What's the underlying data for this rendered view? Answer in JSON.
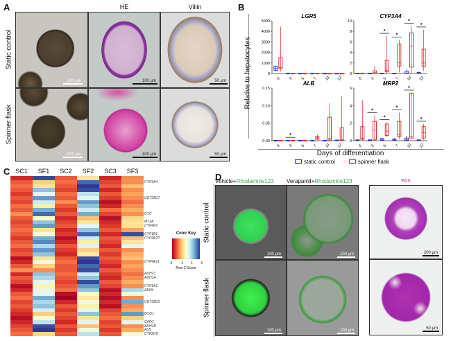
{
  "panels": {
    "a": "A",
    "b": "B",
    "c": "C",
    "d": "D"
  },
  "panel_a": {
    "columns": [
      "HE",
      "Villin"
    ],
    "rows": [
      "Static control",
      "Spinner flask"
    ],
    "scale_bars": {
      "r1": [
        "200 µm",
        "100 µm",
        "50 µm"
      ],
      "r2": [
        "200 µm",
        "100 µm",
        "50 µm"
      ]
    }
  },
  "panel_b": {
    "ylabel": "Relative to hepatocytes",
    "xlabel": "Days of differentiation",
    "legend": [
      {
        "label": "static control",
        "color": "#2a2ad8"
      },
      {
        "label": "spinner flask",
        "color": "#e02020"
      }
    ],
    "sig_marker": "*"
  },
  "chart_data": [
    {
      "type": "box",
      "title": "LGR5",
      "categories": [
        "0",
        "3",
        "5",
        "7",
        "10",
        "12"
      ],
      "ylim": [
        0,
        5000
      ],
      "yticks": [
        0,
        1000,
        2000,
        3000,
        4000,
        5000
      ],
      "series": [
        {
          "name": "static control",
          "boxes": [
            [
              200,
              300,
              500,
              700,
              750
            ],
            [
              0,
              5,
              10,
              20,
              30
            ],
            [
              0,
              5,
              10,
              20,
              30
            ],
            [
              0,
              5,
              10,
              20,
              30
            ],
            [
              0,
              5,
              10,
              20,
              30
            ],
            [
              0,
              5,
              10,
              20,
              30
            ]
          ]
        },
        {
          "name": "spinner flask",
          "boxes": [
            [
              200,
              450,
              550,
              1500,
              4450
            ],
            [
              0,
              5,
              10,
              20,
              40
            ],
            [
              0,
              5,
              10,
              20,
              40
            ],
            [
              0,
              5,
              10,
              20,
              40
            ],
            [
              0,
              5,
              10,
              20,
              40
            ],
            [
              0,
              5,
              10,
              20,
              40
            ]
          ]
        }
      ],
      "significant": []
    },
    {
      "type": "box",
      "title": "CYP3A4",
      "categories": [
        "0",
        "3",
        "5",
        "7",
        "10",
        "12"
      ],
      "ylim": [
        0,
        10
      ],
      "yticks": [
        0,
        2,
        4,
        6,
        8,
        10
      ],
      "series": [
        {
          "name": "static control",
          "boxes": [
            [
              0,
              0,
              0.02,
              0.05,
              0.08
            ],
            [
              0,
              0,
              0.02,
              0.05,
              0.08
            ],
            [
              0,
              0,
              0.02,
              0.05,
              0.1
            ],
            [
              0,
              0,
              0.02,
              0.05,
              0.1
            ],
            [
              0,
              0.02,
              0.1,
              0.4,
              0.8
            ],
            [
              0,
              0.02,
              0.1,
              0.2,
              0.4
            ]
          ]
        },
        {
          "name": "spinner flask",
          "boxes": [
            [
              0,
              0,
              0.02,
              0.05,
              0.08
            ],
            [
              0,
              0.05,
              0.15,
              0.5,
              1.4
            ],
            [
              0,
              0.3,
              0.6,
              2.5,
              7.1
            ],
            [
              0.2,
              1.4,
              2,
              5.6,
              6.4
            ],
            [
              0,
              1.2,
              5.2,
              7.7,
              9
            ],
            [
              0.5,
              1.3,
              2,
              4.6,
              8.3
            ]
          ]
        }
      ],
      "significant": [
        "5",
        "7",
        "10",
        "12"
      ]
    },
    {
      "type": "box",
      "title": "ALB",
      "categories": [
        "0",
        "3",
        "5",
        "7",
        "10",
        "12"
      ],
      "ylim": [
        0,
        0.15
      ],
      "yticks": [
        0,
        0.05,
        0.1,
        0.15
      ],
      "series": [
        {
          "name": "static control",
          "boxes": [
            [
              0,
              0,
              0.0005,
              0.001,
              0.0015
            ],
            [
              0,
              0,
              0.0005,
              0.001,
              0.0015
            ],
            [
              0,
              0,
              0.0005,
              0.001,
              0.0015
            ],
            [
              0,
              0,
              0.0005,
              0.001,
              0.0015
            ],
            [
              0,
              0,
              0.0005,
              0.001,
              0.0015
            ],
            [
              0,
              0,
              0.001,
              0.002,
              0.003
            ]
          ]
        },
        {
          "name": "spinner flask",
          "boxes": [
            [
              0,
              0,
              0.0005,
              0.001,
              0.0015
            ],
            [
              0,
              0,
              0.0005,
              0.001,
              0.0015
            ],
            [
              0,
              0,
              0.0005,
              0.001,
              0.002
            ],
            [
              0.002,
              0.004,
              0.008,
              0.012,
              0.018
            ],
            [
              0,
              0.002,
              0.007,
              0.067,
              0.107
            ],
            [
              0,
              0.001,
              0.003,
              0.037,
              0.127
            ]
          ]
        }
      ],
      "significant": [
        "3"
      ]
    },
    {
      "type": "box",
      "title": "MRP2",
      "categories": [
        "0",
        "3",
        "5",
        "7",
        "10",
        "12"
      ],
      "ylim": [
        0,
        6
      ],
      "yticks": [
        0,
        2,
        4,
        6
      ],
      "series": [
        {
          "name": "static control",
          "boxes": [
            [
              0,
              0.02,
              0.05,
              0.1,
              0.15
            ],
            [
              0,
              0.02,
              0.05,
              0.1,
              0.15
            ],
            [
              0,
              0.05,
              0.15,
              0.25,
              0.3
            ],
            [
              0,
              0.05,
              0.1,
              0.2,
              0.3
            ],
            [
              0,
              0.05,
              0.15,
              0.3,
              0.55
            ],
            [
              0,
              0.02,
              0.05,
              0.1,
              0.15
            ]
          ]
        },
        {
          "name": "spinner flask",
          "boxes": [
            [
              0,
              0.15,
              0.3,
              1.6,
              4.6
            ],
            [
              0,
              0.1,
              1.2,
              2.2,
              2.9
            ],
            [
              0.4,
              0.6,
              1.1,
              1.9,
              2.1
            ],
            [
              0.2,
              0.5,
              0.7,
              2.2,
              3.2
            ],
            [
              0.2,
              0.3,
              0.5,
              5.4,
              5.5
            ],
            [
              0.1,
              0.3,
              0.9,
              1.6,
              1.9
            ]
          ]
        }
      ],
      "significant": [
        "3",
        "5",
        "7",
        "10",
        "12"
      ]
    }
  ],
  "panel_c": {
    "columns": [
      "SC1",
      "SF1",
      "SC2",
      "SF2",
      "SC3",
      "SF3"
    ],
    "color_key": {
      "title": "Color Key",
      "ticks": [
        "-3",
        "-1",
        "1",
        "3"
      ],
      "label": "Row Z-Score"
    },
    "genes": [
      {
        "name": "CYP3A4",
        "row": 1
      },
      {
        "name": "UGT2B17",
        "row": 5
      },
      {
        "name": "OTC",
        "row": 9
      },
      {
        "name": "MT2A",
        "row": 11
      },
      {
        "name": "CYP4F2",
        "row": 12
      },
      {
        "name": "CYP1B1",
        "row": 14
      },
      {
        "name": "CYP2B7P",
        "row": 15
      },
      {
        "name": "CYP4A11",
        "row": 21
      },
      {
        "name": "ADH1C",
        "row": 24
      },
      {
        "name": "ADH1A",
        "row": 25
      },
      {
        "name": "CYP1A1",
        "row": 27
      },
      {
        "name": "ADH4",
        "row": 28
      },
      {
        "name": "UGT2B10",
        "row": 31
      },
      {
        "name": "BCO1",
        "row": 34
      },
      {
        "name": "G6PC",
        "row": 36
      },
      {
        "name": "ADH1B",
        "row": 37
      },
      {
        "name": "ALB",
        "row": 38
      },
      {
        "name": "CYP2C8",
        "row": 39
      }
    ],
    "zscores": [
      [
        -2.5,
        2.8,
        -2,
        -0.5,
        -2.5,
        -1.5
      ],
      [
        -2,
        -0.8,
        -1.8,
        2.5,
        -2.2,
        -1.5
      ],
      [
        -1.8,
        -0.5,
        -2,
        3,
        -2,
        -1
      ],
      [
        -2,
        1.5,
        -2.2,
        2.8,
        -2.5,
        -1.5
      ],
      [
        -2.3,
        0.5,
        -1.8,
        1,
        -2,
        -1.3
      ],
      [
        -2,
        2,
        -2,
        0.5,
        -2.3,
        -1.5
      ],
      [
        -2.2,
        0.8,
        -1.5,
        2,
        -2.8,
        -1.8
      ],
      [
        -1.8,
        -0.3,
        -2,
        1.5,
        -2.5,
        -1.5
      ],
      [
        -2,
        1.8,
        -2.3,
        0.8,
        -1.8,
        -1.2
      ],
      [
        -1.5,
        2.5,
        -2,
        1.8,
        -2.2,
        -1.5
      ],
      [
        -2,
        0,
        -2.5,
        -1,
        -2.8,
        -0.7
      ],
      [
        -2.2,
        1.5,
        -2.2,
        -0.5,
        -2.5,
        -0.5
      ],
      [
        -2,
        2,
        -2,
        0.5,
        -2.3,
        -0.6
      ],
      [
        -1.8,
        -0.5,
        -2.5,
        1.5,
        -2,
        -1.3
      ],
      [
        -2,
        0.2,
        -2.3,
        2.5,
        -2.5,
        2.8
      ],
      [
        -2.3,
        1.8,
        -2.8,
        0.8,
        -2,
        -1
      ],
      [
        -2,
        2.2,
        -2.5,
        -0.3,
        -2.2,
        -0.5
      ],
      [
        -1.8,
        1.2,
        -2,
        0.6,
        -2.5,
        0.5
      ],
      [
        -2.2,
        2,
        -2.3,
        -0.8,
        -2,
        -1.5
      ],
      [
        -2,
        1.5,
        -2.5,
        -0.4,
        -2.3,
        -1.2
      ],
      [
        -2.8,
        -0.5,
        -2,
        2.8,
        -2,
        -1
      ],
      [
        -2.5,
        0.3,
        -1.8,
        3,
        -2.2,
        -1.5
      ],
      [
        -2,
        -0.8,
        -2,
        2.5,
        -2.5,
        -1.3
      ],
      [
        -1.5,
        -1.5,
        -2,
        2.8,
        -2,
        -1.5
      ],
      [
        -2.5,
        1.5,
        -1.8,
        0.8,
        -2.3,
        -1.8
      ],
      [
        -2,
        1.2,
        -2,
        1.5,
        -2.5,
        -1.5
      ],
      [
        -2.2,
        0.5,
        -2.2,
        2.8,
        -2,
        -1.2
      ],
      [
        -2.8,
        -0.2,
        -2,
        2,
        -2.2,
        -1.5
      ],
      [
        -2.5,
        0.4,
        -1.8,
        1.5,
        -2.8,
        1.2
      ],
      [
        -2,
        0.5,
        -2.8,
        0,
        -2.5,
        0.3
      ],
      [
        -1.8,
        1.8,
        -3,
        -0.4,
        -2.8,
        -1.5
      ],
      [
        -2.2,
        1.2,
        -2.5,
        0.3,
        -2.5,
        1.8
      ],
      [
        -2,
        1.5,
        -2,
        -0.3,
        -2.8,
        -1.5
      ],
      [
        -2.3,
        0.7,
        -2.3,
        0.5,
        -2.2,
        -1.2
      ],
      [
        -2.5,
        -0.8,
        -2,
        1.5,
        -2,
        2
      ],
      [
        -2.8,
        0.2,
        -2.2,
        -0.5,
        -1.8,
        -0.8
      ],
      [
        -2.5,
        1,
        -2.5,
        0.5,
        -2.2,
        0.5
      ],
      [
        -2.2,
        2.8,
        -2,
        -1,
        -2,
        -1.5
      ],
      [
        -2,
        3,
        -2.3,
        0.3,
        -2.3,
        -1.2
      ],
      [
        -1.8,
        -0.7,
        -2,
        1,
        -2,
        0.2
      ]
    ]
  },
  "panel_d": {
    "columns": [
      {
        "drug": "Vehicle+",
        "dye": "Rhodamine123"
      },
      {
        "drug": "Verapamil+",
        "dye": "Rhodamine123"
      },
      {
        "drug": "",
        "dye": "PAS"
      }
    ],
    "rows": [
      "Static control",
      "Spinner flask"
    ],
    "scale_bars": {
      "r1": [
        "100 µm",
        "100 µm",
        "200 µm"
      ],
      "r2": [
        "100 µm",
        "100 µm",
        "50 µm"
      ]
    }
  }
}
